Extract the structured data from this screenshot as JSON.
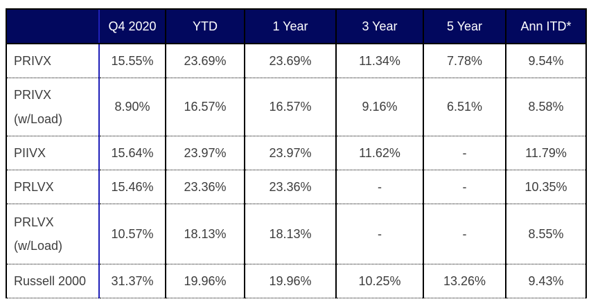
{
  "colors": {
    "header_background": "#02085E",
    "header_text": "#FFFFFF",
    "body_text": "#3D3D3D",
    "outer_border": "#000000",
    "label_column_separator": "#2020B8",
    "page_background": "#FFFFFF"
  },
  "table": {
    "header": {
      "cells": [
        "",
        "Q4 2020",
        "YTD",
        "1 Year",
        "3 Year",
        "5 Year",
        "Ann ITD*"
      ]
    },
    "rows": [
      {
        "label": "PRIVX",
        "values": [
          "15.55%",
          "23.69%",
          "23.69%",
          "11.34%",
          "7.78%",
          "9.54%"
        ]
      },
      {
        "label": "PRIVX\n(w/Load)",
        "values": [
          "8.90%",
          "16.57%",
          "16.57%",
          "9.16%",
          "6.51%",
          "8.58%"
        ]
      },
      {
        "label": "PIIVX",
        "values": [
          "15.64%",
          "23.97%",
          "23.97%",
          "11.62%",
          "-",
          "11.79%"
        ]
      },
      {
        "label": "PRLVX",
        "values": [
          "15.46%",
          "23.36%",
          "23.36%",
          "-",
          "-",
          "10.35%"
        ]
      },
      {
        "label": "PRLVX\n(w/Load)",
        "values": [
          "10.57%",
          "18.13%",
          "18.13%",
          "-",
          "-",
          "8.55%"
        ]
      },
      {
        "label": "Russell 2000",
        "values": [
          "31.37%",
          "19.96%",
          "19.96%",
          "10.25%",
          "13.26%",
          "9.43%"
        ]
      }
    ]
  },
  "chart_data": {
    "type": "table",
    "columns": [
      "",
      "Q4 2020",
      "YTD",
      "1 Year",
      "3 Year",
      "5 Year",
      "Ann ITD*"
    ],
    "rows": [
      [
        "PRIVX",
        "15.55%",
        "23.69%",
        "23.69%",
        "11.34%",
        "7.78%",
        "9.54%"
      ],
      [
        "PRIVX (w/Load)",
        "8.90%",
        "16.57%",
        "16.57%",
        "9.16%",
        "6.51%",
        "8.58%"
      ],
      [
        "PIIVX",
        "15.64%",
        "23.97%",
        "23.97%",
        "11.62%",
        "-",
        "11.79%"
      ],
      [
        "PRLVX",
        "15.46%",
        "23.36%",
        "23.36%",
        "-",
        "-",
        "10.35%"
      ],
      [
        "PRLVX (w/Load)",
        "10.57%",
        "18.13%",
        "18.13%",
        "-",
        "-",
        "8.55%"
      ],
      [
        "Russell 2000",
        "31.37%",
        "19.96%",
        "19.96%",
        "10.25%",
        "13.26%",
        "9.43%"
      ]
    ],
    "title": "",
    "notes": "Fund performance comparison table; dashes indicate no data for the period; header row on dark navy; Ann ITD is annualized inception-to-date (footnote asterisk)."
  }
}
